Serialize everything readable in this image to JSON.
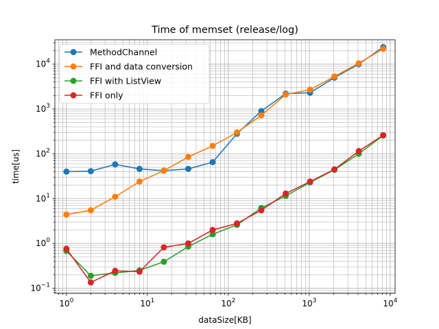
{
  "chart_data": {
    "type": "line",
    "title": "Time of memset (release/log)",
    "xlabel": "dataSize[KB]",
    "ylabel": "time[us]",
    "xscale": "log",
    "yscale": "log",
    "xlim": [
      0.72,
      11500
    ],
    "ylim": [
      0.077,
      35000
    ],
    "grid": true,
    "legend_position": "top-left",
    "x_ticks": [
      {
        "base": "10",
        "exp": "0",
        "value": 1
      },
      {
        "base": "10",
        "exp": "1",
        "value": 10
      },
      {
        "base": "10",
        "exp": "2",
        "value": 100
      },
      {
        "base": "10",
        "exp": "3",
        "value": 1000
      },
      {
        "base": "10",
        "exp": "4",
        "value": 10000
      }
    ],
    "y_ticks": [
      {
        "base": "10",
        "exp": "−1",
        "value": 0.1
      },
      {
        "base": "10",
        "exp": "0",
        "value": 1
      },
      {
        "base": "10",
        "exp": "1",
        "value": 10
      },
      {
        "base": "10",
        "exp": "2",
        "value": 100
      },
      {
        "base": "10",
        "exp": "3",
        "value": 1000
      },
      {
        "base": "10",
        "exp": "4",
        "value": 10000
      }
    ],
    "x": [
      1,
      2,
      4,
      8,
      16,
      32,
      64,
      128,
      256,
      512,
      1024,
      2048,
      4096,
      8192
    ],
    "series": [
      {
        "name": "MethodChannel",
        "color": "#1f77b4",
        "values": [
          40,
          41,
          58,
          46,
          42,
          46,
          65,
          280,
          900,
          2200,
          2300,
          5000,
          10000,
          24000
        ]
      },
      {
        "name": "FFI and data conversion",
        "color": "#ff7f0e",
        "values": [
          4.4,
          5.5,
          11,
          24,
          42,
          85,
          150,
          300,
          720,
          2100,
          2700,
          5300,
          10500,
          22000
        ]
      },
      {
        "name": "FFI with ListView",
        "color": "#2ca02c",
        "values": [
          0.68,
          0.19,
          0.22,
          0.25,
          0.39,
          0.85,
          1.6,
          2.6,
          6.2,
          11.5,
          23,
          44,
          100,
          255
        ]
      },
      {
        "name": "FFI only",
        "color": "#d62728",
        "values": [
          0.76,
          0.135,
          0.245,
          0.235,
          0.82,
          1.0,
          2.0,
          2.8,
          5.5,
          13,
          24,
          45,
          115,
          260
        ]
      }
    ]
  }
}
